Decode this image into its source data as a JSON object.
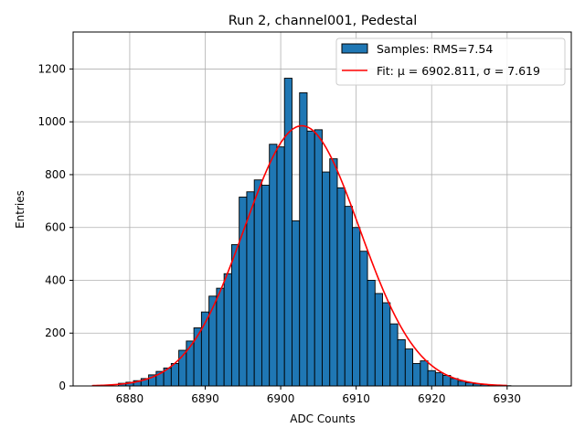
{
  "chart_data": {
    "type": "bar",
    "title": "Run 2, channel001, Pedestal",
    "xlabel": "ADC Counts",
    "ylabel": "Entries",
    "xlim": [
      6872.5,
      6938.5
    ],
    "ylim": [
      0,
      1340
    ],
    "xticks": [
      6880,
      6890,
      6900,
      6910,
      6920,
      6930
    ],
    "yticks": [
      0,
      200,
      400,
      600,
      800,
      1000,
      1200
    ],
    "grid": true,
    "legend_position": "top-right",
    "bin_width": 1,
    "bins": {
      "x": [
        6879,
        6880,
        6881,
        6882,
        6883,
        6884,
        6885,
        6886,
        6887,
        6888,
        6889,
        6890,
        6891,
        6892,
        6893,
        6894,
        6895,
        6896,
        6897,
        6898,
        6899,
        6900,
        6901,
        6902,
        6903,
        6904,
        6905,
        6906,
        6907,
        6908,
        6909,
        6910,
        6911,
        6912,
        6913,
        6914,
        6915,
        6916,
        6917,
        6918,
        6919,
        6920,
        6921,
        6922,
        6923,
        6924,
        6925,
        6926,
        6927,
        6928,
        6929,
        6930
      ],
      "values": [
        10,
        14,
        20,
        28,
        42,
        55,
        68,
        85,
        135,
        170,
        220,
        280,
        340,
        370,
        425,
        535,
        715,
        735,
        780,
        760,
        915,
        905,
        1165,
        625,
        1110,
        965,
        970,
        810,
        860,
        750,
        680,
        600,
        510,
        400,
        350,
        315,
        235,
        175,
        140,
        85,
        95,
        58,
        50,
        40,
        28,
        18,
        12,
        8,
        5,
        3,
        2,
        1
      ]
    },
    "series": [
      {
        "name": "Samples: RMS=7.54",
        "kind": "histogram",
        "color": "#1f77b4",
        "edgecolor": "#000000"
      },
      {
        "name": "Fit: μ = 6902.811, σ = 7.619",
        "kind": "gaussian-fit",
        "color": "#ff0000",
        "mu": 6902.811,
        "sigma": 7.619,
        "amplitude": 985,
        "x_range": [
          6875,
          6930
        ]
      }
    ]
  }
}
